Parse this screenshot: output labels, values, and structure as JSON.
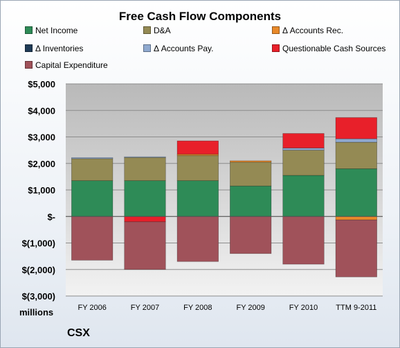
{
  "chart_data": {
    "type": "bar",
    "stacked": true,
    "title": "Free Cash Flow Components",
    "ylabel": "millions",
    "company": "CSX",
    "ylim": [
      -3000,
      5000
    ],
    "yticks": [
      5000,
      4000,
      3000,
      2000,
      1000,
      0,
      -1000,
      -2000,
      -3000
    ],
    "ytick_labels": [
      "$5,000",
      "$4,000",
      "$3,000",
      "$2,000",
      "$1,000",
      "$-",
      "$(1,000)",
      "$(2,000)",
      "$(3,000)"
    ],
    "grid": true,
    "legend_position": "top",
    "categories": [
      "FY 2006",
      "FY 2007",
      "FY 2008",
      "FY 2009",
      "FY 2010",
      "TTM 9-2011"
    ],
    "series": [
      {
        "name": "Net Income",
        "color": "#2e8b57",
        "values": [
          1350,
          1350,
          1350,
          1150,
          1550,
          1800
        ]
      },
      {
        "name": "D&A",
        "color": "#948a54",
        "values": [
          830,
          880,
          950,
          900,
          950,
          1000
        ]
      },
      {
        "name": "Δ Accounts Rec.",
        "color": "#e8892a",
        "values": [
          0,
          0,
          50,
          50,
          0,
          -130
        ]
      },
      {
        "name": "Δ Inventories",
        "color": "#1f3b57",
        "values": [
          0,
          0,
          0,
          0,
          0,
          0
        ]
      },
      {
        "name": "Δ Accounts Pay.",
        "color": "#8fa9cf",
        "values": [
          40,
          20,
          0,
          0,
          80,
          130
        ]
      },
      {
        "name": "Questionable Cash Sources",
        "color": "#e8202a",
        "values": [
          0,
          -200,
          500,
          0,
          550,
          800
        ]
      },
      {
        "name": "Capital Expenditure",
        "color": "#a0525a",
        "values": [
          -1650,
          -1800,
          -1700,
          -1400,
          -1800,
          -2150
        ]
      }
    ]
  }
}
